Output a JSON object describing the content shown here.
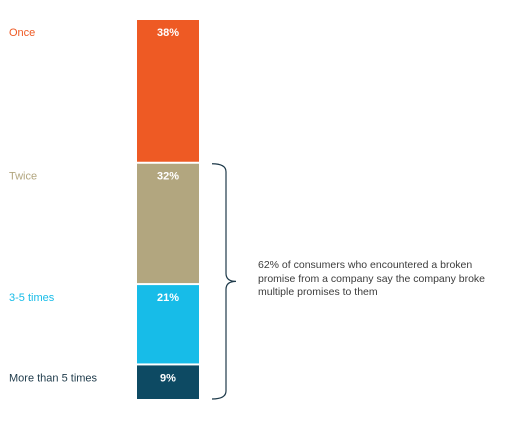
{
  "chart_data": {
    "type": "bar",
    "orientation": "stacked-vertical",
    "categories": [
      "Once",
      "Twice",
      "3-5 times",
      "More than 5 times"
    ],
    "values": [
      38,
      32,
      21,
      9
    ],
    "value_labels": [
      "38%",
      "32%",
      "21%",
      "9%"
    ],
    "unit": "%",
    "colors": [
      "#ee5a24",
      "#b2a67f",
      "#17bce8",
      "#0d4a63"
    ],
    "label_colors": [
      "#ee5a24",
      "#b2a67f",
      "#17bce8",
      "#1e3a4a"
    ],
    "annotation": "62% of consumers who encountered a broken promise from a company say the company broke multiple promises to them",
    "bracket_spans": [
      "Twice",
      "More than 5 times"
    ]
  }
}
